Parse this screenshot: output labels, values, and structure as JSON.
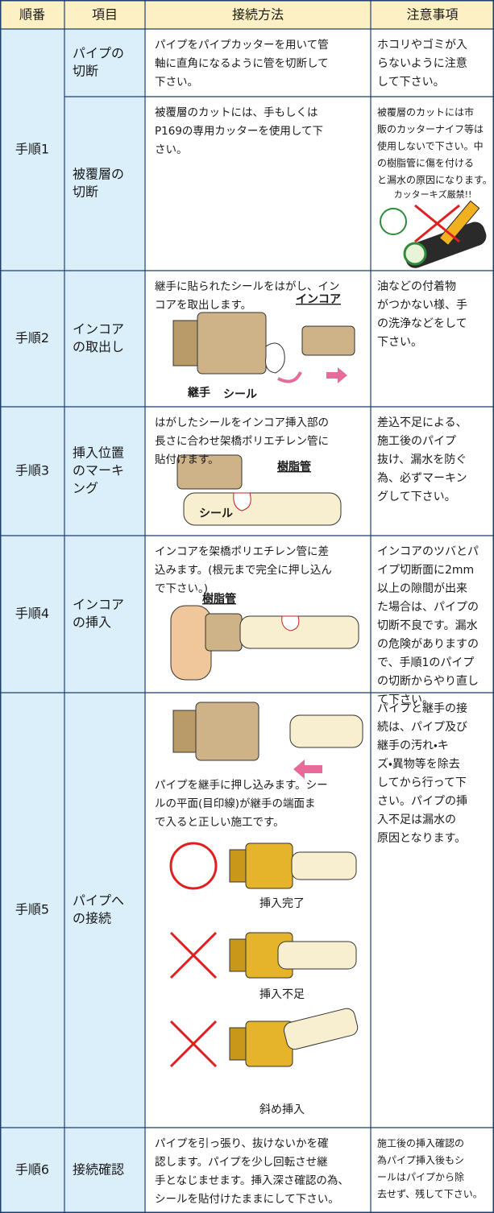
{
  "header": [
    "順番",
    "項目",
    "接続方法",
    "注意事項"
  ],
  "rows": [
    {
      "step": "手順1",
      "parts": [
        {
          "item": [
            "パイプの",
            "切断"
          ],
          "method": [
            "パイプをパイプカッターを用いて管",
            "軸に直角になるように管を切断して",
            "下さい。"
          ],
          "note": [
            "ホコリやゴミが入",
            "らないように注意",
            "して下さい。"
          ]
        },
        {
          "item": [
            "被覆層の",
            "切断"
          ],
          "method": [
            "被覆層のカットには、手もしくは",
            "P169の専用カッターを使用して下",
            "さい。"
          ],
          "note": [
            "被覆層のカットには市",
            "販のカッターナイフ等は",
            "使用しないで下さい。中",
            "の樹脂管に傷を付ける",
            "と漏水の原因になります。"
          ],
          "figure_labels": [
            "カッターキズ厳禁!!"
          ]
        }
      ]
    },
    {
      "step": "手順2",
      "parts": [
        {
          "item": [
            "インコア",
            "の取出し"
          ],
          "method": [
            "継手に貼られたシールをはがし、イン",
            "コアを取出します。"
          ],
          "note": [
            "油などの付着物",
            "がつかない様、手",
            "の洗浄などをして",
            "下さい。"
          ],
          "figure_labels": [
            "インコア",
            "継手",
            "シール"
          ]
        }
      ]
    },
    {
      "step": "手順3",
      "parts": [
        {
          "item": [
            "挿入位置",
            "のマーキ",
            "ング"
          ],
          "method": [
            "はがしたシールをインコア挿入部の",
            "長さに合わせ架橋ポリエチレン管に",
            "貼付けます。"
          ],
          "note": [
            "差込不足による、",
            "施工後のパイプ",
            "抜け、漏水を防ぐ",
            "為、必ずマーキン",
            "グして下さい。"
          ],
          "figure_labels": [
            "樹脂管",
            "シール"
          ]
        }
      ]
    },
    {
      "step": "手順4",
      "parts": [
        {
          "item": [
            "インコア",
            "の挿入"
          ],
          "method": [
            "インコアを架橋ポリエチレン管に差",
            "込みます。(根元まで完全に押し込ん",
            "で下さい。)"
          ],
          "note": [
            "インコアのツバとパ",
            "イプ切断面に2mm",
            "以上の隙間が出来",
            "た場合は、パイプの",
            "切断不良です。漏水",
            "の危険がありますの",
            "で、手順1のパイプ",
            "の切断からやり直し",
            "て下さい。"
          ],
          "figure_labels": [
            "樹脂管"
          ]
        }
      ]
    },
    {
      "step": "手順5",
      "parts": [
        {
          "item": [
            "パイプへ",
            "の接続"
          ],
          "method": [
            "パイプを継手に押し込みます。シー",
            "ルの平面(目印線)が継手の端面ま",
            "で入ると正しい施工です。"
          ],
          "note": [
            "パイプと継手の接",
            "続は、パイプ及び",
            "継手の汚れ・キ",
            "ズ・異物等を除去",
            "してから行って下",
            "さい。パイプの挿",
            "入不足は漏水の",
            "原因となります。"
          ],
          "figure_labels": [
            "挿入完了",
            "挿入不足",
            "斜め挿入"
          ]
        }
      ]
    },
    {
      "step": "手順6",
      "parts": [
        {
          "item": [
            "接続確認"
          ],
          "method": [
            "パイプを引っ張り、抜けないかを確",
            "認します。パイプを少し回転させ継",
            "手となじませます。挿入深さ確認の為、",
            "シールを貼付けたままにして下さい。"
          ],
          "note": [
            "施工後の挿入確認の",
            "為パイプ挿入後もシ",
            "ールはパイプから除",
            "去せず、残して下さい。"
          ]
        }
      ]
    }
  ]
}
